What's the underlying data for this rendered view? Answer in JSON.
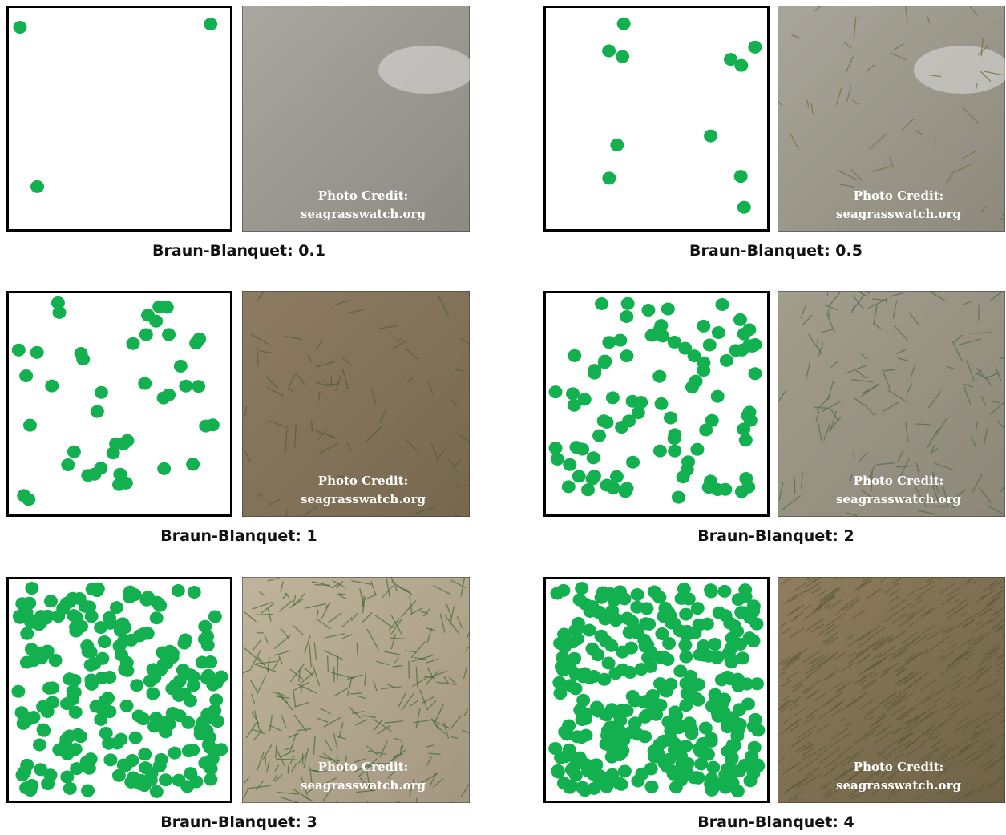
{
  "panels": [
    {
      "label": "Braun-Blanquet: 0.1",
      "photo_credit": [
        "Photo Credit:",
        "seagrasswatch.org"
      ]
    },
    {
      "label": "Braun-Blanquet: 0.5",
      "photo_credit": [
        "Photo Credit:",
        "seagrasswatch.org"
      ]
    },
    {
      "label": "Braun-Blanquet: 1",
      "photo_credit": [
        "Photo Credit:",
        "seagrasswatch.org"
      ]
    },
    {
      "label": "Braun-Blanquet: 2",
      "photo_credit": [
        "Photo Credit:",
        "seagrasswatch.org"
      ]
    },
    {
      "label": "Braun-Blanquet: 3",
      "photo_credit": [
        "Photo Credit:",
        "seagrasswatch.org"
      ]
    },
    {
      "label": "Braun-Blanquet: 4",
      "photo_credit": [
        "Photo Credit:",
        "seagrasswatch.org"
      ]
    }
  ]
}
